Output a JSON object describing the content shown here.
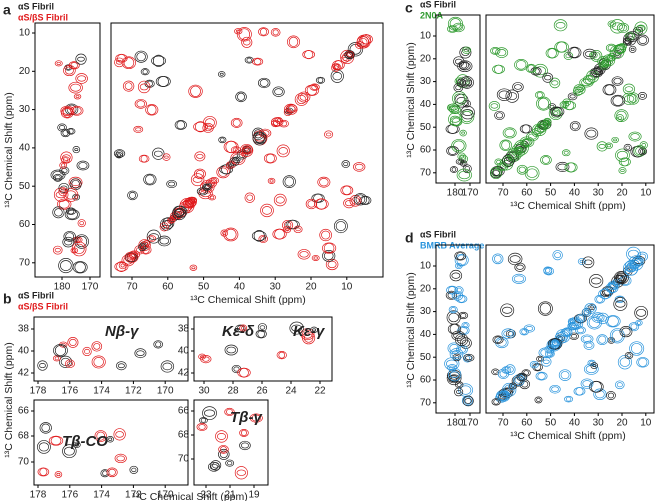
{
  "panel_a": {
    "label": "a",
    "legend": [
      "αS Fibril",
      "αS/βS Fibril"
    ],
    "strip_xticks": [
      180,
      170
    ],
    "yticks": [
      10,
      20,
      30,
      40,
      50,
      60,
      70
    ],
    "main_xticks": [
      70,
      60,
      50,
      40,
      30,
      20,
      10
    ],
    "y_axis_label": "¹³C Chemical Shift (ppm)",
    "x_axis_label": "¹³C Chemical Shift (ppm)"
  },
  "panel_b": {
    "label": "b",
    "legend": [
      "αS Fibril",
      "αS/βS Fibril"
    ],
    "plots": [
      {
        "annotations": [
          "Nβ-γ"
        ],
        "xticks": [
          178,
          176,
          174,
          172,
          170
        ],
        "yticks": [
          38,
          40,
          42
        ]
      },
      {
        "annotations": [
          "Kε-δ",
          "Kε-γ"
        ],
        "xticks": [
          30,
          28,
          26,
          24,
          22
        ],
        "yticks": [
          38,
          40,
          42
        ]
      },
      {
        "annotations": [
          "Tβ-CO"
        ],
        "xticks": [
          178,
          176,
          174,
          172,
          170
        ],
        "yticks": [
          66,
          68,
          70
        ]
      },
      {
        "annotations": [
          "Tβ-γ"
        ],
        "xticks": [
          23,
          21,
          19
        ],
        "yticks": [
          66,
          68,
          70
        ]
      }
    ],
    "y_axis_label": "¹³C Chemical Shift (ppm)",
    "x_axis_label": "¹³C Chemical Shift (ppm)"
  },
  "panel_c": {
    "label": "c",
    "legend": [
      "αS Fibril",
      "2N0A"
    ],
    "strip_xticks": [
      180,
      170
    ],
    "yticks": [
      10,
      20,
      30,
      40,
      50,
      60,
      70
    ],
    "main_xticks": [
      70,
      60,
      50,
      40,
      30,
      20,
      10
    ],
    "y_axis_label": "¹³C Chemical Shift (ppm)",
    "x_axis_label": "¹³C Chemical Shift (ppm)"
  },
  "panel_d": {
    "label": "d",
    "legend": [
      "αS Fibril",
      "BMRB Average"
    ],
    "strip_xticks": [
      180,
      170
    ],
    "yticks": [
      10,
      20,
      30,
      40,
      50,
      60,
      70
    ],
    "main_xticks": [
      70,
      60,
      50,
      40,
      30,
      20,
      10
    ],
    "y_axis_label": "¹³C Chemical Shift (ppm)",
    "x_axis_label": "¹³C Chemical Shift (ppm)"
  }
}
